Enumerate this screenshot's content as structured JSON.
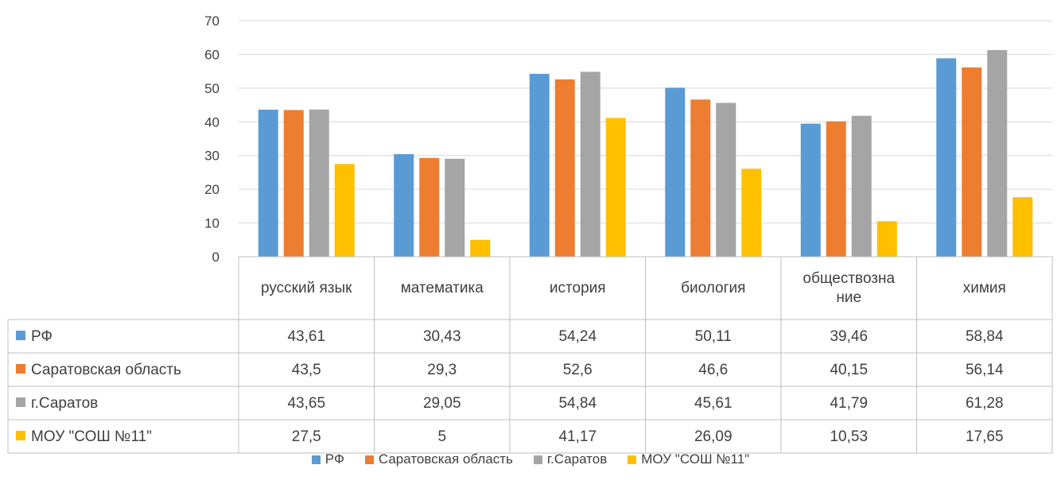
{
  "chart_data": {
    "type": "bar",
    "categories": [
      "русский  язык",
      "математика",
      "история",
      "биология",
      "обществозна ние",
      "химия"
    ],
    "category_lines": [
      [
        "русский  язык"
      ],
      [
        "математика"
      ],
      [
        "история"
      ],
      [
        "биология"
      ],
      [
        "обществозна",
        "ние"
      ],
      [
        "химия"
      ]
    ],
    "series": [
      {
        "name": "РФ",
        "color": "#5b9bd5",
        "values": [
          43.61,
          30.43,
          54.24,
          50.11,
          39.46,
          58.84
        ],
        "labels": [
          "43,61",
          "30,43",
          "54,24",
          "50,11",
          "39,46",
          "58,84"
        ]
      },
      {
        "name": "Саратовская область",
        "color": "#ed7d31",
        "values": [
          43.5,
          29.3,
          52.6,
          46.6,
          40.15,
          56.14
        ],
        "labels": [
          "43,5",
          "29,3",
          "52,6",
          "46,6",
          "40,15",
          "56,14"
        ]
      },
      {
        "name": "г.Саратов",
        "color": "#a5a5a5",
        "values": [
          43.65,
          29.05,
          54.84,
          45.61,
          41.79,
          61.28
        ],
        "labels": [
          "43,65",
          "29,05",
          "54,84",
          "45,61",
          "41,79",
          "61,28"
        ]
      },
      {
        "name": "МОУ \"СОШ №11\"",
        "color": "#ffc000",
        "values": [
          27.5,
          5,
          41.17,
          26.09,
          10.53,
          17.65
        ],
        "labels": [
          "27,5",
          "5",
          "41,17",
          "26,09",
          "10,53",
          "17,65"
        ]
      }
    ],
    "yticks": [
      "0",
      "10",
      "20",
      "30",
      "40",
      "50",
      "60",
      "70"
    ],
    "ylim": [
      0,
      70
    ],
    "grid": true,
    "data_table": true,
    "legend_position": "bottom"
  }
}
